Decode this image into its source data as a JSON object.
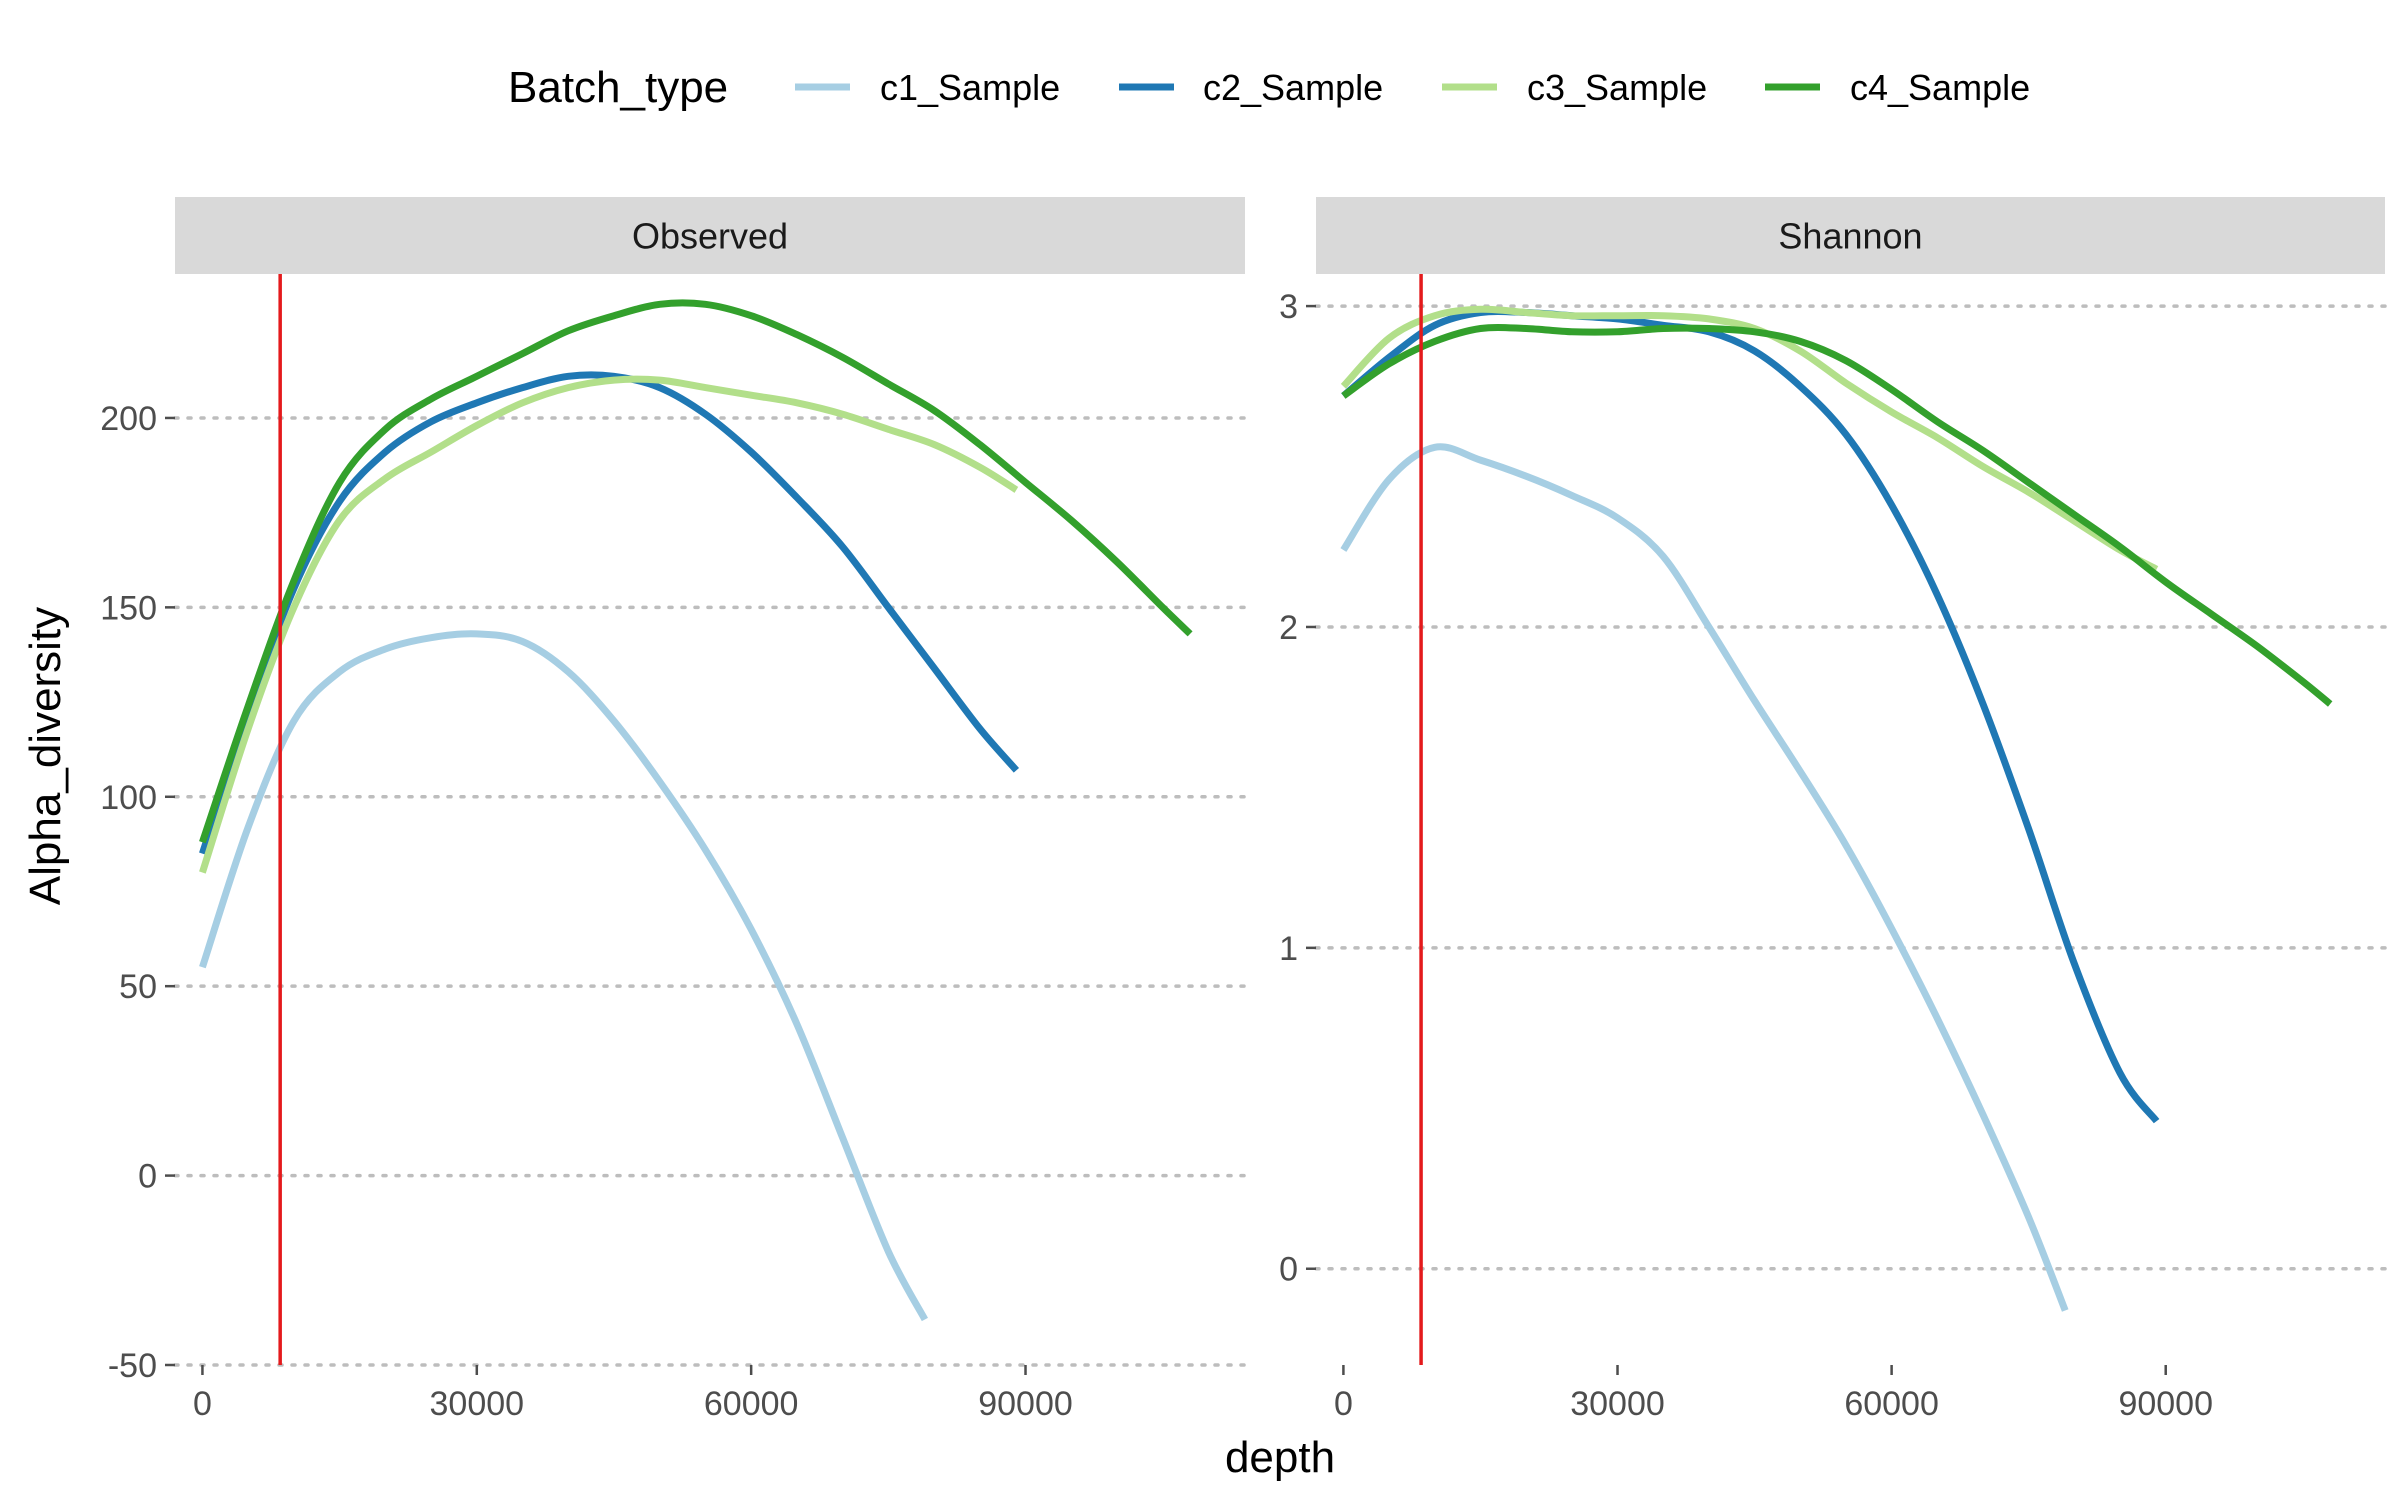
{
  "legend": {
    "title": "Batch_type",
    "position": "top"
  },
  "colors": {
    "c1_Sample": "#a6cee3",
    "c2_Sample": "#1f78b4",
    "c3_Sample": "#b2df8a",
    "c4_Sample": "#33a02c",
    "reference_line": "#e41a1c",
    "strip_background": "#d9d9d9",
    "grid": "#bdbdbd"
  },
  "chart_data": {
    "type": "line",
    "xlabel": "depth",
    "ylabel": "Alpha_diversity",
    "grid": "horizontal dotted",
    "reference_vline_x": 8500,
    "series_names": [
      "c1_Sample",
      "c2_Sample",
      "c3_Sample",
      "c4_Sample"
    ],
    "panels": [
      {
        "name": "Observed",
        "xlim": [
          -3000,
          114000
        ],
        "ylim": [
          -50,
          238
        ],
        "xticks": [
          0,
          30000,
          60000,
          90000
        ],
        "xtick_labels": [
          "0",
          "30000",
          "60000",
          "90000"
        ],
        "yticks": [
          -50,
          0,
          50,
          100,
          150,
          200
        ],
        "ytick_labels": [
          "-50",
          "0",
          "50",
          "100",
          "150",
          "200"
        ],
        "series": [
          {
            "name": "c1_Sample",
            "x": [
              0,
              5000,
              10000,
              15000,
              20000,
              25000,
              30000,
              35000,
              40000,
              45000,
              50000,
              55000,
              60000,
              65000,
              70000,
              75000,
              79000
            ],
            "y": [
              55,
              92,
              120,
              133,
              139,
              142,
              143,
              141,
              133,
              120,
              104,
              86,
              65,
              40,
              10,
              -20,
              -38
            ]
          },
          {
            "name": "c2_Sample",
            "x": [
              0,
              5000,
              10000,
              15000,
              20000,
              25000,
              30000,
              35000,
              40000,
              45000,
              50000,
              55000,
              60000,
              65000,
              70000,
              75000,
              80000,
              85000,
              89000
            ],
            "y": [
              85,
              122,
              155,
              178,
              191,
              199,
              204,
              208,
              211,
              211,
              208,
              201,
              191,
              179,
              166,
              150,
              134,
              118,
              107
            ]
          },
          {
            "name": "c3_Sample",
            "x": [
              0,
              5000,
              10000,
              15000,
              20000,
              25000,
              30000,
              35000,
              40000,
              45000,
              50000,
              55000,
              60000,
              65000,
              70000,
              75000,
              80000,
              85000,
              89000
            ],
            "y": [
              80,
              118,
              150,
              173,
              184,
              191,
              198,
              204,
              208,
              210,
              210,
              208,
              206,
              204,
              201,
              197,
              193,
              187,
              181
            ]
          },
          {
            "name": "c4_Sample",
            "x": [
              0,
              5000,
              10000,
              15000,
              20000,
              25000,
              30000,
              35000,
              40000,
              45000,
              50000,
              55000,
              60000,
              65000,
              70000,
              75000,
              80000,
              85000,
              90000,
              95000,
              100000,
              105000,
              108000
            ],
            "y": [
              88,
              124,
              157,
              183,
              197,
              205,
              211,
              217,
              223,
              227,
              230,
              230,
              227,
              222,
              216,
              209,
              202,
              193,
              183,
              173,
              162,
              150,
              143
            ]
          }
        ]
      },
      {
        "name": "Shannon",
        "xlim": [
          -3000,
          114000
        ],
        "ylim": [
          -0.3,
          3.1
        ],
        "xticks": [
          0,
          30000,
          60000,
          90000
        ],
        "xtick_labels": [
          "0",
          "30000",
          "60000",
          "90000"
        ],
        "yticks": [
          0,
          1,
          2,
          3
        ],
        "ytick_labels": [
          "0",
          "1",
          "2",
          "3"
        ],
        "series": [
          {
            "name": "c1_Sample",
            "x": [
              0,
              5000,
              10000,
              15000,
              20000,
              25000,
              30000,
              35000,
              40000,
              45000,
              50000,
              55000,
              60000,
              65000,
              70000,
              75000,
              79000
            ],
            "y": [
              2.24,
              2.46,
              2.56,
              2.52,
              2.47,
              2.41,
              2.34,
              2.22,
              2.0,
              1.77,
              1.55,
              1.32,
              1.06,
              0.78,
              0.48,
              0.16,
              -0.13
            ]
          },
          {
            "name": "c2_Sample",
            "x": [
              0,
              5000,
              10000,
              15000,
              20000,
              25000,
              30000,
              35000,
              40000,
              45000,
              50000,
              55000,
              60000,
              65000,
              70000,
              75000,
              80000,
              85000,
              89000
            ],
            "y": [
              2.72,
              2.84,
              2.94,
              2.98,
              2.98,
              2.97,
              2.96,
              2.94,
              2.92,
              2.86,
              2.75,
              2.6,
              2.38,
              2.1,
              1.76,
              1.37,
              0.95,
              0.61,
              0.46
            ]
          },
          {
            "name": "c3_Sample",
            "x": [
              0,
              5000,
              10000,
              15000,
              20000,
              25000,
              30000,
              35000,
              40000,
              45000,
              50000,
              55000,
              60000,
              65000,
              70000,
              75000,
              80000,
              85000,
              89000
            ],
            "y": [
              2.75,
              2.9,
              2.97,
              2.99,
              2.98,
              2.97,
              2.97,
              2.97,
              2.96,
              2.93,
              2.86,
              2.76,
              2.67,
              2.59,
              2.5,
              2.42,
              2.33,
              2.24,
              2.18
            ]
          },
          {
            "name": "c4_Sample",
            "x": [
              0,
              5000,
              10000,
              15000,
              20000,
              25000,
              30000,
              35000,
              40000,
              45000,
              50000,
              55000,
              60000,
              65000,
              70000,
              75000,
              80000,
              85000,
              90000,
              95000,
              100000,
              105000,
              108000
            ],
            "y": [
              2.72,
              2.82,
              2.89,
              2.93,
              2.93,
              2.92,
              2.92,
              2.93,
              2.93,
              2.92,
              2.89,
              2.83,
              2.74,
              2.64,
              2.55,
              2.45,
              2.35,
              2.25,
              2.14,
              2.04,
              1.94,
              1.83,
              1.76
            ]
          }
        ]
      }
    ]
  }
}
